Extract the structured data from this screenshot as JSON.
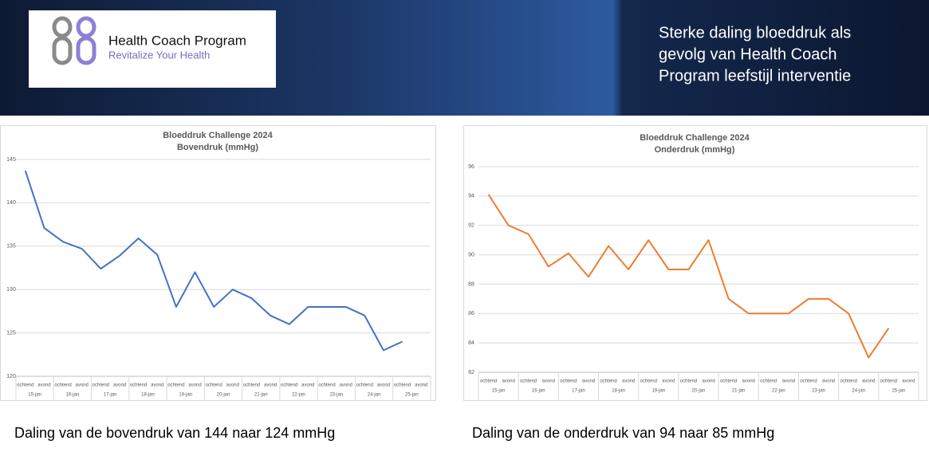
{
  "header": {
    "logo_title": "Health Coach Program",
    "logo_tagline": "Revitalize Your Health",
    "headline": [
      "Sterke daling bloeddruk als",
      "gevolg van Health Coach",
      "Program leefstijl interventie"
    ]
  },
  "captions": [
    "Daling van de bovendruk van 144 naar 124 mmHg",
    "Daling van de onderdruk van 94 naar 85 mmHg"
  ],
  "chart_data": [
    {
      "type": "line",
      "title": "Bloeddruk Challenge 2024",
      "subtitle": "Bovendruk (mmHg)",
      "categories": [
        "ochtend",
        "avond",
        "ochtend",
        "avond",
        "ochtend",
        "avond",
        "ochtend",
        "avond",
        "ochtend",
        "avond",
        "ochtend",
        "avond",
        "ochtend",
        "avond",
        "ochtend",
        "avond",
        "ochtend",
        "avond",
        "ochtend",
        "avond",
        "ochtend",
        "avond"
      ],
      "groups": [
        "15-jan",
        "16-jan",
        "17-jan",
        "18-jan",
        "19-jan",
        "20-jan",
        "21-jan",
        "22-jan",
        "23-jan",
        "24-jan",
        "25-jan"
      ],
      "series": [
        {
          "name": "Bovendruk",
          "color": "#4472c4",
          "values": [
            143.7,
            137.1,
            135.5,
            134.7,
            132.4,
            133.9,
            135.9,
            134.0,
            128,
            132,
            128,
            130,
            129,
            127,
            126,
            128,
            128,
            128,
            127,
            123,
            124,
            null
          ]
        }
      ],
      "ylim": [
        120,
        145
      ],
      "yticks": [
        120,
        125,
        130,
        135,
        140,
        145
      ],
      "grid": true
    },
    {
      "type": "line",
      "title": "Bloeddruk Challenge 2024",
      "subtitle": "Onderdruk (mmHg)",
      "categories": [
        "ochtend",
        "avond",
        "ochtend",
        "avond",
        "ochtend",
        "avond",
        "ochtend",
        "avond",
        "ochtend",
        "avond",
        "ochtend",
        "avond",
        "ochtend",
        "avond",
        "ochtend",
        "avond",
        "ochtend",
        "avond",
        "ochtend",
        "avond",
        "ochtend",
        "avond"
      ],
      "groups": [
        "15-jan",
        "16-jan",
        "17-jan",
        "18-jan",
        "19-jan",
        "20-jan",
        "21-jan",
        "22-jan",
        "23-jan",
        "24-jan",
        "25-jan"
      ],
      "series": [
        {
          "name": "Onderdruk",
          "color": "#ed7d31",
          "values": [
            94.1,
            92,
            91.4,
            89.2,
            90.1,
            88.5,
            90.6,
            89,
            91,
            89,
            89,
            91,
            87,
            86,
            86,
            86,
            87,
            87,
            86,
            83,
            85,
            null
          ]
        }
      ],
      "ylim": [
        82,
        96
      ],
      "yticks": [
        82,
        84,
        86,
        88,
        90,
        92,
        94,
        96
      ],
      "grid": true
    }
  ]
}
